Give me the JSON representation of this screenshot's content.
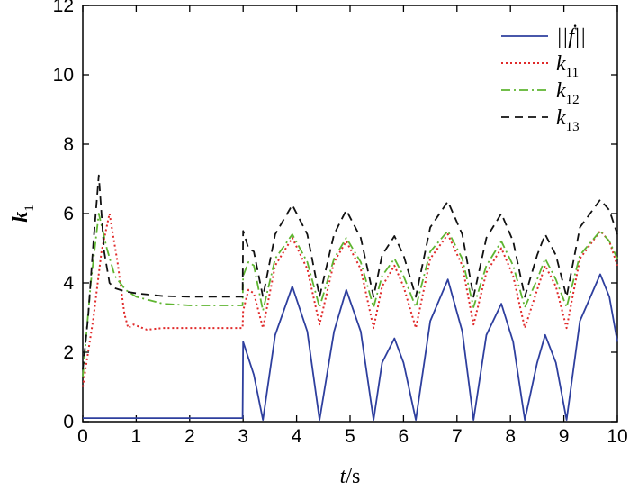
{
  "chart_data": {
    "type": "line",
    "xlabel": {
      "var": "t",
      "unit": "/s"
    },
    "ylabel": {
      "var": "k",
      "sub": "1"
    },
    "xlim": [
      0,
      10
    ],
    "ylim": [
      0,
      12
    ],
    "xticks": [
      "0",
      "1",
      "2",
      "3",
      "4",
      "5",
      "6",
      "7",
      "8",
      "9",
      "10"
    ],
    "yticks": [
      "0",
      "2",
      "4",
      "6",
      "8",
      "10",
      "12"
    ],
    "grid": false,
    "legend_position": "top-right",
    "series": [
      {
        "name": "||ḟ||",
        "color": "#2e3f9e",
        "style": "solid",
        "x": [
          0,
          0.5,
          1,
          1.5,
          2,
          2.5,
          2.98,
          2.99,
          3.0,
          3.2,
          3.37,
          3.6,
          3.92,
          4.2,
          4.43,
          4.7,
          4.93,
          5.2,
          5.44,
          5.6,
          5.83,
          6.0,
          6.23,
          6.5,
          6.83,
          7.1,
          7.31,
          7.55,
          7.83,
          8.05,
          8.27,
          8.5,
          8.65,
          8.85,
          9.05,
          9.3,
          9.68,
          9.85,
          10.0
        ],
        "y": [
          0.1,
          0.1,
          0.1,
          0.1,
          0.1,
          0.1,
          0.1,
          0.1,
          2.3,
          1.35,
          0.05,
          2.5,
          3.9,
          2.6,
          0.05,
          2.6,
          3.8,
          2.6,
          0.05,
          1.7,
          2.4,
          1.7,
          0.05,
          2.9,
          4.1,
          2.6,
          0.05,
          2.5,
          3.4,
          2.3,
          0.05,
          1.7,
          2.5,
          1.7,
          0.05,
          2.9,
          4.25,
          3.6,
          2.3
        ]
      },
      {
        "name": "k11",
        "color": "#e02a2a",
        "style": "dotted",
        "x": [
          0,
          0.2,
          0.35,
          0.5,
          0.65,
          0.78,
          0.85,
          0.95,
          1.2,
          1.5,
          2.0,
          2.5,
          2.98,
          2.99,
          3.0,
          3.1,
          3.2,
          3.37,
          3.6,
          3.92,
          4.2,
          4.43,
          4.7,
          4.93,
          5.2,
          5.44,
          5.6,
          5.83,
          6.0,
          6.23,
          6.5,
          6.83,
          7.1,
          7.31,
          7.55,
          7.83,
          8.05,
          8.27,
          8.5,
          8.65,
          8.85,
          9.05,
          9.3,
          9.68,
          9.85,
          10.0
        ],
        "y": [
          1.0,
          3.0,
          4.9,
          6.0,
          4.6,
          3.1,
          2.7,
          2.8,
          2.65,
          2.7,
          2.7,
          2.7,
          2.7,
          2.7,
          3.2,
          3.8,
          3.7,
          2.7,
          4.5,
          5.3,
          4.4,
          2.8,
          4.6,
          5.2,
          4.4,
          2.7,
          3.9,
          4.5,
          3.9,
          2.7,
          4.7,
          5.4,
          4.5,
          2.8,
          4.3,
          5.0,
          4.2,
          2.7,
          3.8,
          4.5,
          3.9,
          2.7,
          4.7,
          5.5,
          5.2,
          4.5
        ]
      },
      {
        "name": "k12",
        "color": "#5fb531",
        "style": "dashdot",
        "x": [
          0,
          0.15,
          0.3,
          0.45,
          0.6,
          0.8,
          1.0,
          1.5,
          2.0,
          2.5,
          2.98,
          2.99,
          3.0,
          3.1,
          3.2,
          3.37,
          3.6,
          3.92,
          4.2,
          4.43,
          4.7,
          4.93,
          5.2,
          5.44,
          5.6,
          5.83,
          6.0,
          6.23,
          6.5,
          6.83,
          7.1,
          7.31,
          7.55,
          7.83,
          8.05,
          8.27,
          8.5,
          8.65,
          8.85,
          9.05,
          9.3,
          9.68,
          9.85,
          10.0
        ],
        "y": [
          1.3,
          4.0,
          6.0,
          5.0,
          4.2,
          3.8,
          3.6,
          3.4,
          3.35,
          3.35,
          3.35,
          3.35,
          4.2,
          4.6,
          4.5,
          3.2,
          4.7,
          5.4,
          4.6,
          3.3,
          4.7,
          5.3,
          4.6,
          3.3,
          4.2,
          4.7,
          4.2,
          3.3,
          4.9,
          5.5,
          4.7,
          3.3,
          4.5,
          5.2,
          4.5,
          3.3,
          4.1,
          4.7,
          4.1,
          3.3,
          4.8,
          5.5,
          5.2,
          4.7
        ]
      },
      {
        "name": "k13",
        "color": "#111111",
        "style": "dashed",
        "x": [
          0,
          0.1,
          0.2,
          0.3,
          0.4,
          0.5,
          0.6,
          0.8,
          1.0,
          1.5,
          2.0,
          2.5,
          2.98,
          2.99,
          3.0,
          3.1,
          3.2,
          3.37,
          3.6,
          3.92,
          4.2,
          4.43,
          4.7,
          4.93,
          5.2,
          5.44,
          5.6,
          5.83,
          6.0,
          6.23,
          6.5,
          6.83,
          7.1,
          7.31,
          7.55,
          7.83,
          8.05,
          8.27,
          8.5,
          8.65,
          8.85,
          9.05,
          9.3,
          9.68,
          9.85,
          10.0
        ],
        "y": [
          1.5,
          3.0,
          5.2,
          7.1,
          4.9,
          4.0,
          3.85,
          3.75,
          3.7,
          3.62,
          3.6,
          3.6,
          3.6,
          3.6,
          5.5,
          5.0,
          4.9,
          3.6,
          5.4,
          6.25,
          5.4,
          3.6,
          5.4,
          6.1,
          5.3,
          3.6,
          4.8,
          5.35,
          4.8,
          3.6,
          5.6,
          6.35,
          5.4,
          3.6,
          5.3,
          6.0,
          5.2,
          3.6,
          4.8,
          5.4,
          4.8,
          3.6,
          5.6,
          6.4,
          6.1,
          5.4
        ]
      }
    ]
  }
}
